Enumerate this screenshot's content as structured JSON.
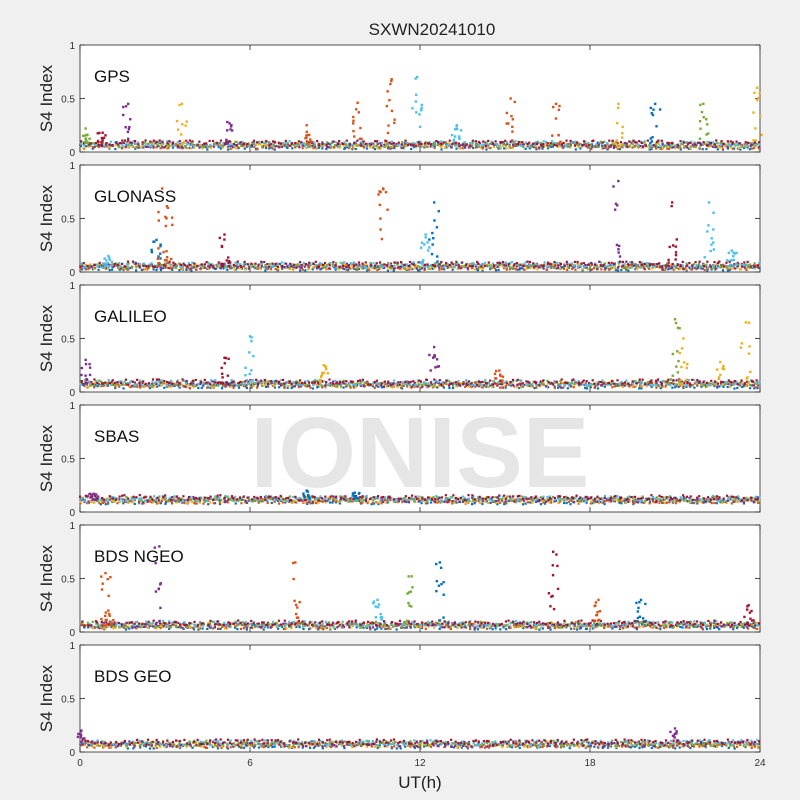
{
  "chart_data": {
    "type": "scatter",
    "title": "SXWN20241010",
    "xlabel": "UT(h)",
    "ylabel": "S4 Index",
    "xlim": [
      0,
      24
    ],
    "ylim": [
      0,
      1
    ],
    "xticks": [
      0,
      6,
      12,
      18,
      24
    ],
    "yticks": [
      0,
      0.5,
      1
    ],
    "watermark": "IONISE",
    "series_colors": [
      "#0072BD",
      "#D95319",
      "#EDB120",
      "#7E2F8E",
      "#77AC30",
      "#4DBEEE",
      "#A2142F"
    ],
    "panels": [
      {
        "label": "GPS",
        "baseline": 0.06,
        "peaks": [
          {
            "t": 0.2,
            "h": 0.22,
            "c": 4
          },
          {
            "t": 0.8,
            "h": 0.18,
            "c": 6
          },
          {
            "t": 1.7,
            "h": 0.45,
            "c": 3
          },
          {
            "t": 3.6,
            "h": 0.45,
            "c": 2
          },
          {
            "t": 5.2,
            "h": 0.28,
            "c": 3
          },
          {
            "t": 8.0,
            "h": 0.25,
            "c": 1
          },
          {
            "t": 9.8,
            "h": 0.46,
            "c": 1
          },
          {
            "t": 11.0,
            "h": 0.68,
            "c": 1
          },
          {
            "t": 11.9,
            "h": 0.7,
            "c": 5
          },
          {
            "t": 13.3,
            "h": 0.25,
            "c": 5
          },
          {
            "t": 15.2,
            "h": 0.5,
            "c": 1
          },
          {
            "t": 16.8,
            "h": 0.45,
            "c": 1
          },
          {
            "t": 19.0,
            "h": 0.45,
            "c": 2
          },
          {
            "t": 20.3,
            "h": 0.45,
            "c": 0
          },
          {
            "t": 22.0,
            "h": 0.45,
            "c": 4
          },
          {
            "t": 23.9,
            "h": 0.6,
            "c": 2
          }
        ]
      },
      {
        "label": "GLONASS",
        "baseline": 0.05,
        "peaks": [
          {
            "t": 1.0,
            "h": 0.15,
            "c": 5
          },
          {
            "t": 2.7,
            "h": 0.3,
            "c": 0
          },
          {
            "t": 2.9,
            "h": 0.78,
            "c": 1
          },
          {
            "t": 3.1,
            "h": 0.6,
            "c": 1
          },
          {
            "t": 5.1,
            "h": 0.35,
            "c": 6
          },
          {
            "t": 10.7,
            "h": 0.78,
            "c": 1
          },
          {
            "t": 12.5,
            "h": 0.65,
            "c": 0
          },
          {
            "t": 12.2,
            "h": 0.35,
            "c": 5
          },
          {
            "t": 19.0,
            "h": 0.85,
            "c": 3
          },
          {
            "t": 20.9,
            "h": 0.65,
            "c": 6
          },
          {
            "t": 22.2,
            "h": 0.65,
            "c": 5
          },
          {
            "t": 23.0,
            "h": 0.2,
            "c": 5
          }
        ]
      },
      {
        "label": "GALILEO",
        "baseline": 0.07,
        "peaks": [
          {
            "t": 0.2,
            "h": 0.3,
            "c": 3
          },
          {
            "t": 5.1,
            "h": 0.32,
            "c": 6
          },
          {
            "t": 6.0,
            "h": 0.52,
            "c": 5
          },
          {
            "t": 8.6,
            "h": 0.25,
            "c": 2
          },
          {
            "t": 12.5,
            "h": 0.42,
            "c": 3
          },
          {
            "t": 14.8,
            "h": 0.2,
            "c": 1
          },
          {
            "t": 21.0,
            "h": 0.68,
            "c": 4
          },
          {
            "t": 21.3,
            "h": 0.5,
            "c": 2
          },
          {
            "t": 22.6,
            "h": 0.28,
            "c": 2
          },
          {
            "t": 23.5,
            "h": 0.65,
            "c": 2
          }
        ]
      },
      {
        "label": "SBAS",
        "baseline": 0.11,
        "peaks": [
          {
            "t": 0.5,
            "h": 0.17,
            "c": 3
          },
          {
            "t": 8.0,
            "h": 0.2,
            "c": 0
          },
          {
            "t": 9.7,
            "h": 0.18,
            "c": 0
          }
        ]
      },
      {
        "label": "BDS NGEO",
        "baseline": 0.06,
        "peaks": [
          {
            "t": 0.9,
            "h": 0.55,
            "c": 1
          },
          {
            "t": 1.0,
            "h": 0.2,
            "c": 1
          },
          {
            "t": 2.8,
            "h": 0.8,
            "c": 3
          },
          {
            "t": 7.6,
            "h": 0.65,
            "c": 1
          },
          {
            "t": 10.5,
            "h": 0.3,
            "c": 5
          },
          {
            "t": 11.6,
            "h": 0.52,
            "c": 4
          },
          {
            "t": 12.7,
            "h": 0.65,
            "c": 0
          },
          {
            "t": 16.7,
            "h": 0.75,
            "c": 6
          },
          {
            "t": 18.3,
            "h": 0.3,
            "c": 1
          },
          {
            "t": 19.8,
            "h": 0.3,
            "c": 0
          },
          {
            "t": 23.6,
            "h": 0.25,
            "c": 6
          }
        ]
      },
      {
        "label": "BDS GEO",
        "baseline": 0.07,
        "peaks": [
          {
            "t": 0.05,
            "h": 0.2,
            "c": 3
          },
          {
            "t": 21.0,
            "h": 0.22,
            "c": 3
          }
        ]
      }
    ]
  }
}
